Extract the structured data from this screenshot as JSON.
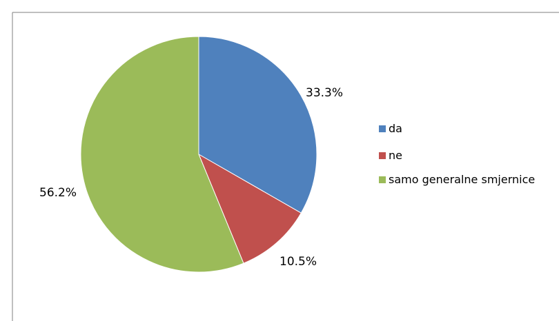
{
  "chart_data": {
    "type": "pie",
    "title": "",
    "categories": [
      "da",
      "ne",
      "samo generalne smjernice"
    ],
    "values": [
      33.3,
      10.5,
      56.2
    ],
    "labels": [
      "33.3%",
      "10.5%",
      "56.2%"
    ],
    "colors": [
      "#4F81BD",
      "#C0504D",
      "#9BBB59"
    ],
    "start_angle_deg": 0,
    "direction": "clockwise",
    "legend": {
      "position": "right",
      "entries": [
        "da",
        "ne",
        "samo generalne smjernice"
      ]
    }
  }
}
